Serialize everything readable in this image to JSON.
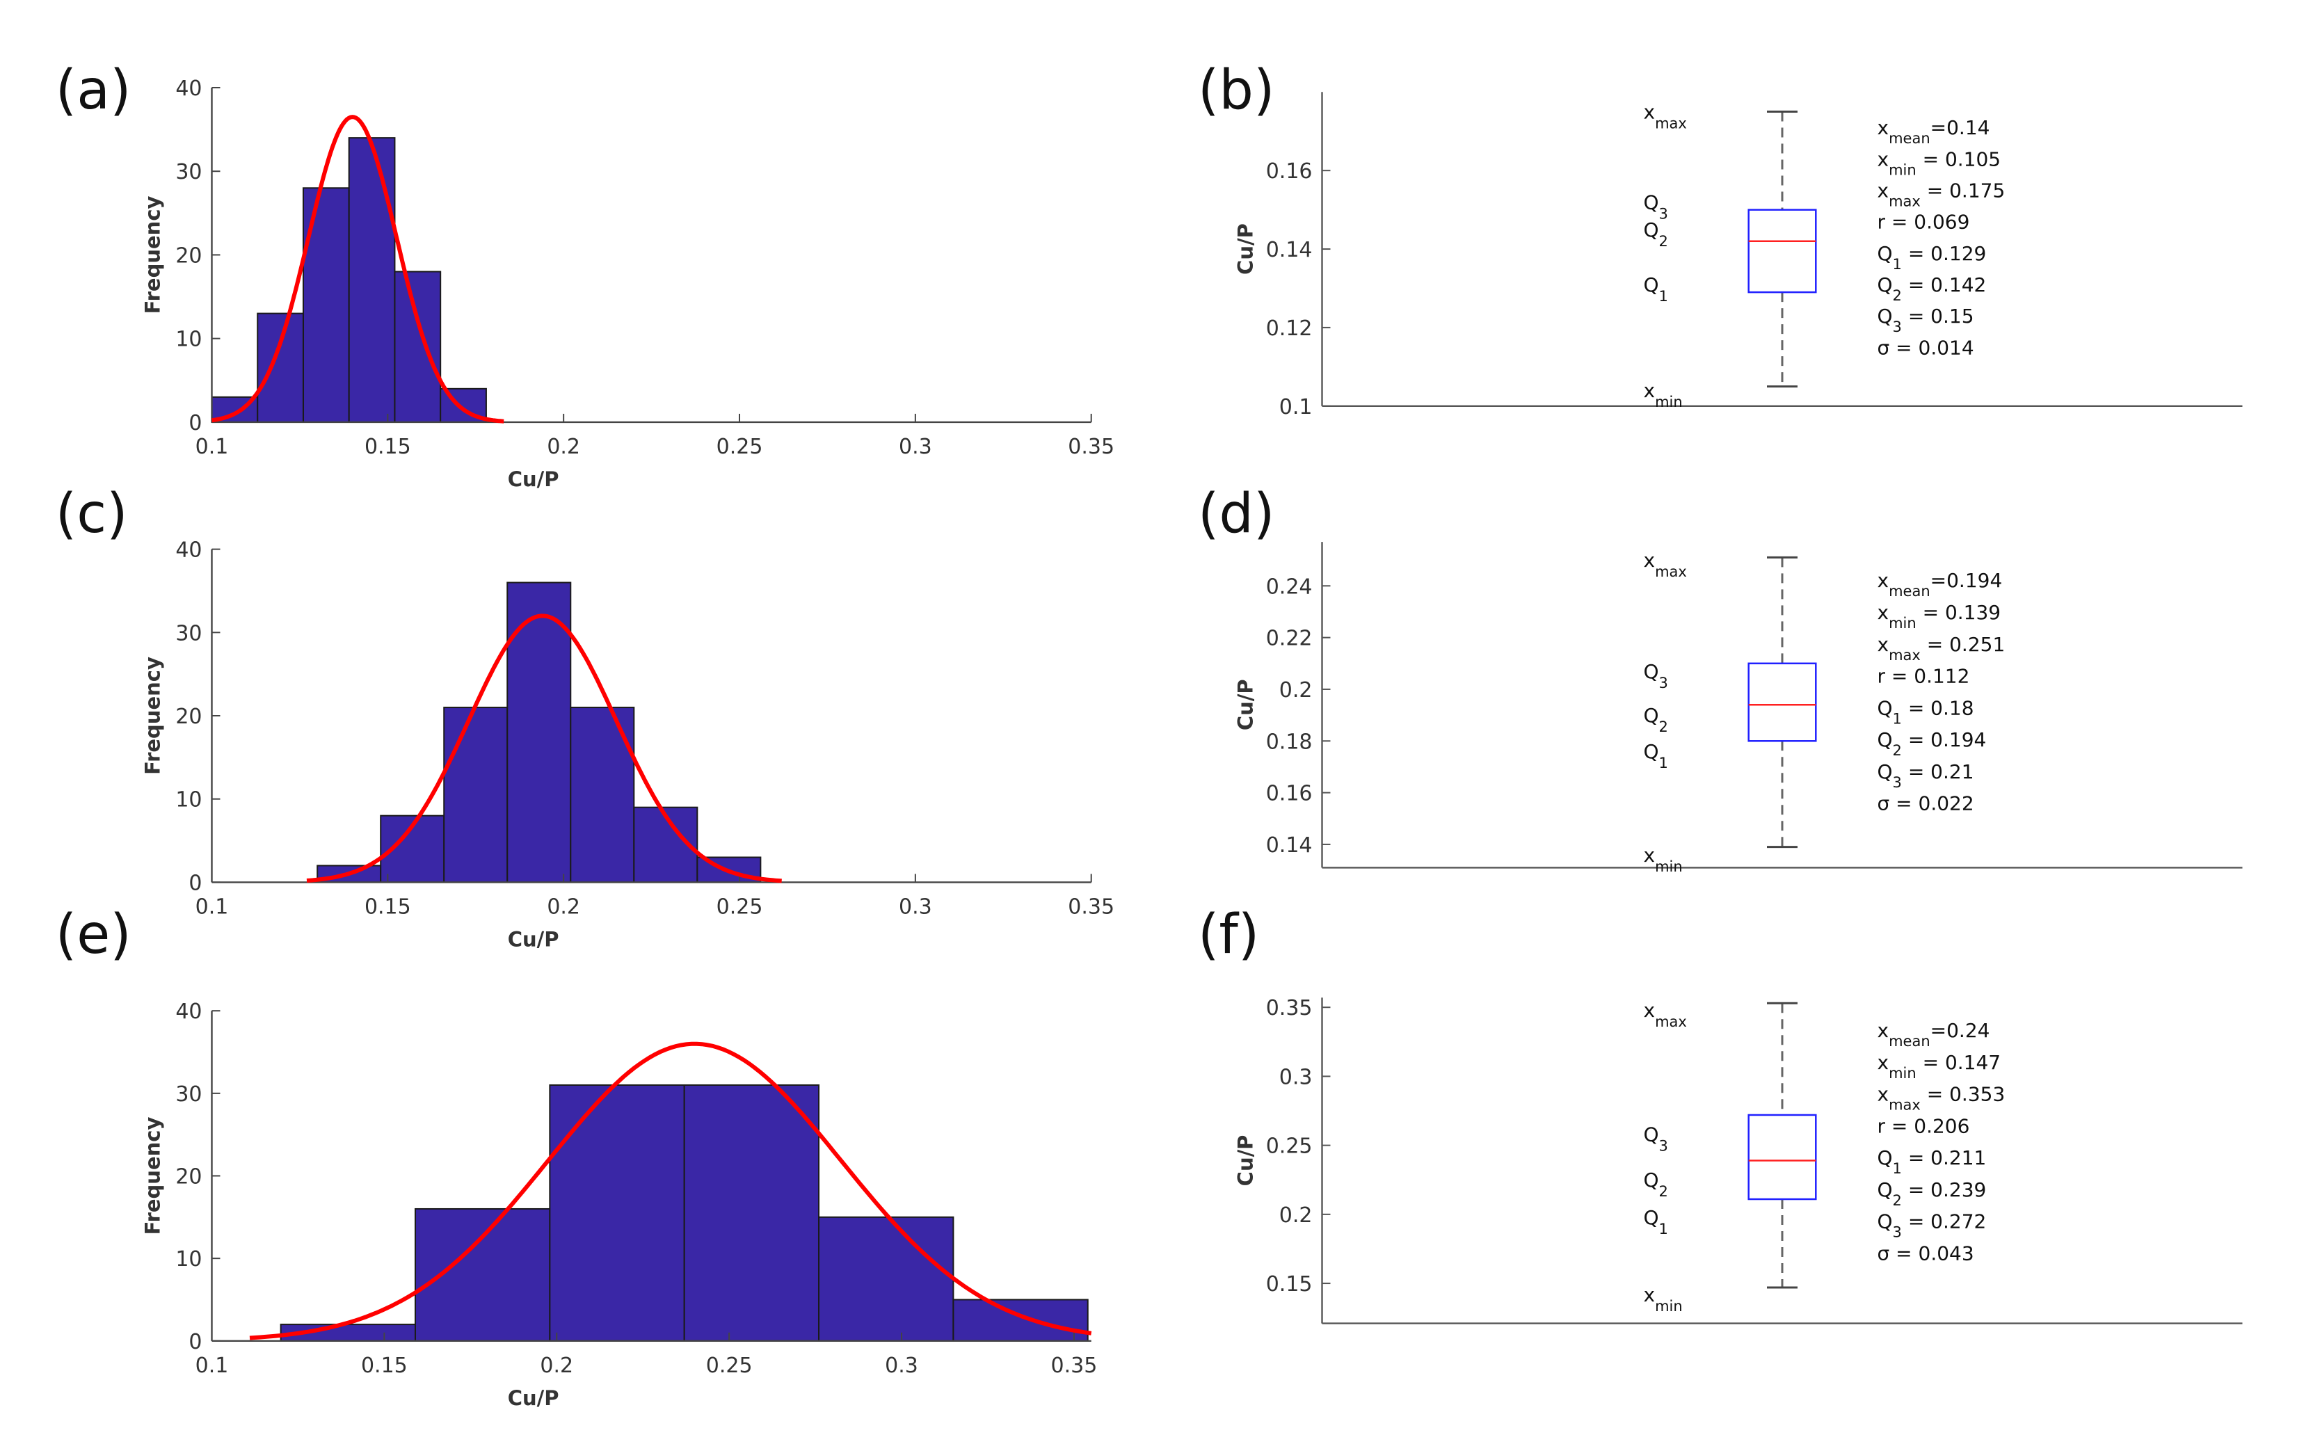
{
  "chart_data": [
    {
      "id": "a",
      "panel_label": "(a)",
      "type": "bar",
      "xlabel": "Cu/P",
      "ylabel": "Frequency",
      "xlim": [
        0.1,
        0.35
      ],
      "ylim": [
        0,
        40
      ],
      "xticks": [
        "0.1",
        "0.15",
        "0.2",
        "0.25",
        "0.3",
        "0.35"
      ],
      "yticks": [
        "0",
        "10",
        "20",
        "30",
        "40"
      ],
      "bin_edges": [
        0.1,
        0.113,
        0.126,
        0.139,
        0.152,
        0.165,
        0.178
      ],
      "values": [
        3,
        13,
        28,
        34,
        18,
        4
      ],
      "fit": {
        "mean": 0.14,
        "sd": 0.0125,
        "peak": 36.5,
        "range": [
          0.1,
          0.183
        ]
      },
      "bar_color": "#3a27a6",
      "fit_color": "#ff0000"
    },
    {
      "id": "c",
      "panel_label": "(c)",
      "type": "bar",
      "xlabel": "Cu/P",
      "ylabel": "Frequency",
      "xlim": [
        0.1,
        0.35
      ],
      "ylim": [
        0,
        40
      ],
      "xticks": [
        "0.1",
        "0.15",
        "0.2",
        "0.25",
        "0.3",
        "0.35"
      ],
      "yticks": [
        "0",
        "10",
        "20",
        "30",
        "40"
      ],
      "bin_edges": [
        0.13,
        0.148,
        0.166,
        0.184,
        0.202,
        0.22,
        0.238,
        0.256
      ],
      "values": [
        2,
        8,
        21,
        36,
        21,
        9,
        3
      ],
      "fit": {
        "mean": 0.194,
        "sd": 0.021,
        "peak": 32,
        "range": [
          0.127,
          0.262
        ]
      },
      "bar_color": "#3a27a6",
      "fit_color": "#ff0000"
    },
    {
      "id": "e",
      "panel_label": "(e)",
      "type": "bar",
      "xlabel": "Cu/P",
      "ylabel": "Frequency",
      "xlim": [
        0.1,
        0.355
      ],
      "ylim": [
        0,
        40
      ],
      "xticks": [
        "0.1",
        "0.15",
        "0.2",
        "0.25",
        "0.3",
        "0.35"
      ],
      "yticks": [
        "0",
        "10",
        "20",
        "30",
        "40"
      ],
      "bin_edges": [
        0.12,
        0.159,
        0.198,
        0.237,
        0.276,
        0.315,
        0.354
      ],
      "values": [
        2,
        16,
        31,
        31,
        15,
        5
      ],
      "fit": {
        "mean": 0.24,
        "sd": 0.0425,
        "peak": 36,
        "range": [
          0.111,
          0.355
        ]
      },
      "bar_color": "#3a27a6",
      "fit_color": "#ff0000"
    },
    {
      "id": "b",
      "panel_label": "(b)",
      "type": "box",
      "ylabel": "Cu/P",
      "ylim": [
        0.1,
        0.18
      ],
      "yticks": [
        "0.1",
        "0.12",
        "0.14",
        "0.16"
      ],
      "ytick_values": [
        0.1,
        0.12,
        0.14,
        0.16
      ],
      "min": 0.105,
      "q1": 0.129,
      "median": 0.142,
      "q3": 0.15,
      "max": 0.175,
      "stats": [
        {
          "sym": "x",
          "sub": "mean",
          "text": "=0.14"
        },
        {
          "sym": "x",
          "sub": "min",
          "text": " = 0.105"
        },
        {
          "sym": "x",
          "sub": "max",
          "text": " = 0.175"
        },
        {
          "sym": "r",
          "sub": "",
          "text": " = 0.069"
        },
        {
          "sym": "Q",
          "sub": "1",
          "text": " = 0.129"
        },
        {
          "sym": "Q",
          "sub": "2",
          "text": " = 0.142"
        },
        {
          "sym": "Q",
          "sub": "3",
          "text": " = 0.15"
        },
        {
          "sym": "σ",
          "sub": "",
          "text": " = 0.014"
        }
      ]
    },
    {
      "id": "d",
      "panel_label": "(d)",
      "type": "box",
      "ylabel": "Cu/P",
      "ylim": [
        0.131,
        0.257
      ],
      "yticks": [
        "0.14",
        "0.16",
        "0.18",
        "0.2",
        "0.22",
        "0.24"
      ],
      "ytick_values": [
        0.14,
        0.16,
        0.18,
        0.2,
        0.22,
        0.24
      ],
      "min": 0.139,
      "q1": 0.18,
      "median": 0.194,
      "q3": 0.21,
      "max": 0.251,
      "stats": [
        {
          "sym": "x",
          "sub": "mean",
          "text": "=0.194"
        },
        {
          "sym": "x",
          "sub": "min",
          "text": " = 0.139"
        },
        {
          "sym": "x",
          "sub": "max",
          "text": " = 0.251"
        },
        {
          "sym": "r",
          "sub": "",
          "text": " = 0.112"
        },
        {
          "sym": "Q",
          "sub": "1",
          "text": " = 0.18"
        },
        {
          "sym": "Q",
          "sub": "2",
          "text": " = 0.194"
        },
        {
          "sym": "Q",
          "sub": "3",
          "text": " = 0.21"
        },
        {
          "sym": "σ",
          "sub": "",
          "text": " = 0.022"
        }
      ]
    },
    {
      "id": "f",
      "panel_label": "(f)",
      "type": "box",
      "ylabel": "Cu/P",
      "ylim": [
        0.121,
        0.357
      ],
      "yticks": [
        "0.15",
        "0.2",
        "0.25",
        "0.3",
        "0.35"
      ],
      "ytick_values": [
        0.15,
        0.2,
        0.25,
        0.3,
        0.35
      ],
      "min": 0.147,
      "q1": 0.211,
      "median": 0.239,
      "q3": 0.272,
      "max": 0.353,
      "stats": [
        {
          "sym": "x",
          "sub": "mean",
          "text": "=0.24"
        },
        {
          "sym": "x",
          "sub": "min",
          "text": " = 0.147"
        },
        {
          "sym": "x",
          "sub": "max",
          "text": " = 0.353"
        },
        {
          "sym": "r",
          "sub": "",
          "text": " = 0.206"
        },
        {
          "sym": "Q",
          "sub": "1",
          "text": " = 0.211"
        },
        {
          "sym": "Q",
          "sub": "2",
          "text": " = 0.239"
        },
        {
          "sym": "Q",
          "sub": "3",
          "text": " = 0.272"
        },
        {
          "sym": "σ",
          "sub": "",
          "text": " = 0.043"
        }
      ]
    }
  ]
}
